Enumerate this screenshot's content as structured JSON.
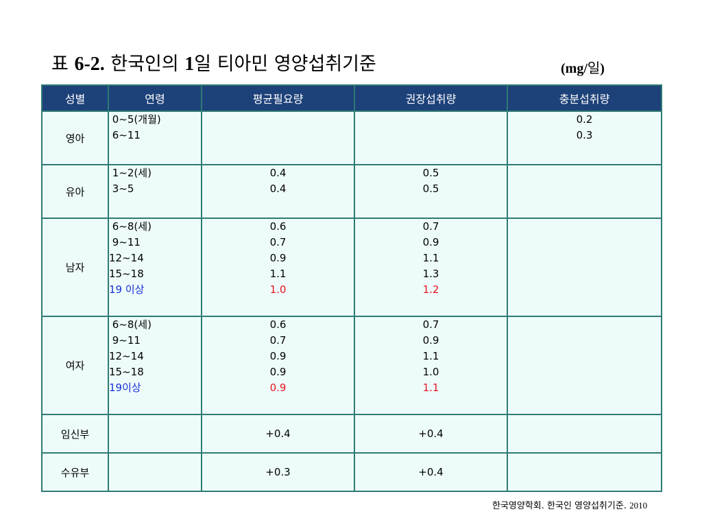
{
  "title": {
    "prefix": "표 ",
    "number": "6-2.",
    "mid": " 한국인의 ",
    "one": "1",
    "rest": "일 티아민 영양섭취기준"
  },
  "unit": {
    "open": "(mg/",
    "word": "일",
    "close": ")"
  },
  "table": {
    "headers": [
      "성별",
      "연령",
      "평균필요량",
      "권장섭취량",
      "충분섭취량"
    ],
    "rows": [
      {
        "sex": "영아",
        "ages": [
          " 0~5(개월)",
          " 6~11"
        ],
        "ear": [],
        "rni": [],
        "ai": [
          "0.2",
          "0.3"
        ]
      },
      {
        "sex": "유아",
        "ages": [
          " 1~2(세)",
          " 3~5"
        ],
        "ear": [
          "0.4",
          "0.4"
        ],
        "rni": [
          "0.5",
          "0.5"
        ],
        "ai": []
      },
      {
        "sex": "남자",
        "ages": [
          " 6~8(세)",
          " 9~11",
          "12~14",
          "15~18",
          "19 이상"
        ],
        "ear": [
          "0.6",
          "0.7",
          "0.9",
          "1.1",
          "1.0"
        ],
        "rni": [
          "0.7",
          "0.9",
          "1.1",
          "1.3",
          "1.2"
        ],
        "ai": []
      },
      {
        "sex": "여자",
        "ages": [
          " 6~8(세)",
          " 9~11",
          "12~14",
          "15~18",
          "19이상"
        ],
        "ear": [
          "0.6",
          "0.7",
          "0.9",
          "0.9",
          "0.9"
        ],
        "rni": [
          "0.7",
          "0.9",
          "1.1",
          "1.0",
          "1.1"
        ],
        "ai": []
      },
      {
        "sex": "임신부",
        "ages": [],
        "ear": [
          "+0.4"
        ],
        "rni": [
          "+0.4"
        ],
        "ai": []
      },
      {
        "sex": "수유부",
        "ages": [],
        "ear": [
          "+0.3"
        ],
        "rni": [
          "+0.4"
        ],
        "ai": []
      }
    ]
  },
  "source": {
    "text": "한국영양학회. 한국인 영양섭취기준. ",
    "year": "2010"
  },
  "colors": {
    "header_bg": "#1d4179",
    "cell_bg": "#eefbfb",
    "border": "#2e7b73",
    "highlight_value": "#e8141e",
    "highlight_age": "#1530d8"
  }
}
